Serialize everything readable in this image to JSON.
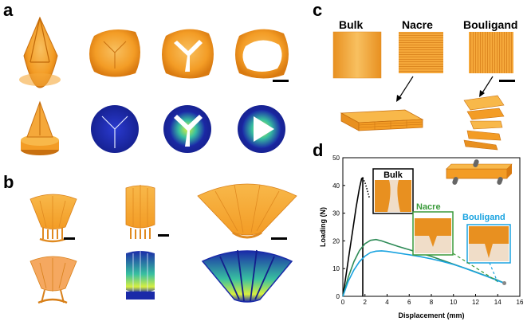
{
  "panels": {
    "a": "a",
    "b": "b",
    "c": "c",
    "d": "d"
  },
  "panel_c": {
    "labels": [
      "Bulk",
      "Nacre",
      "Bouligand"
    ]
  },
  "colors": {
    "orange_light": "#f8b84a",
    "orange_main": "#f39c25",
    "orange_dark": "#d97a10",
    "fem_blue": "#1a2aa8",
    "bulk_line": "#000000",
    "nacre_line": "#2e8b57",
    "bouligand_line": "#1aa3e0",
    "bulk_frame": "#000000",
    "nacre_frame": "#3a9a3a",
    "bouligand_frame": "#1aa3e0"
  },
  "chart_data": {
    "type": "line",
    "xlabel": "Displacement (mm)",
    "ylabel": "Loading (N)",
    "xlim": [
      0,
      16
    ],
    "ylim": [
      0,
      50
    ],
    "xticks": [
      "0",
      "2",
      "4",
      "6",
      "8",
      "10",
      "12",
      "14",
      "16"
    ],
    "yticks": [
      "0",
      "10",
      "20",
      "30",
      "40",
      "50"
    ],
    "grid": false,
    "series": [
      {
        "name": "Bulk",
        "color": "#000000",
        "x": [
          0,
          0.3,
          0.6,
          0.9,
          1.2,
          1.5,
          1.7,
          1.8,
          1.8
        ],
        "y": [
          0,
          8,
          16,
          24,
          32,
          39,
          42.5,
          42.8,
          0
        ]
      },
      {
        "name": "Bulk-dotted",
        "color": "#000000",
        "x": [
          1.8,
          2.0,
          2.2,
          2.4
        ],
        "y": [
          42.8,
          41.0,
          38.5,
          35.5
        ]
      },
      {
        "name": "Nacre",
        "color": "#2e8b57",
        "x": [
          0,
          0.5,
          1.0,
          1.5,
          2.0,
          2.5,
          3.0,
          3.5,
          4.0,
          5.0,
          6.0,
          7.0,
          8.0,
          9.0,
          10.0,
          11.0,
          12.0,
          13.0,
          14.0,
          14.6
        ],
        "y": [
          0,
          7,
          12.5,
          16.5,
          19.0,
          20.2,
          20.5,
          20.0,
          19.3,
          18.0,
          16.8,
          15.6,
          14.4,
          13.0,
          11.6,
          10.2,
          8.8,
          7.3,
          5.8,
          4.8
        ]
      },
      {
        "name": "Bouligand",
        "color": "#1aa3e0",
        "x": [
          0,
          0.5,
          1.0,
          1.5,
          2.0,
          2.5,
          3.0,
          3.5,
          4.0,
          5.0,
          6.0,
          7.0,
          8.0,
          9.0,
          10.0,
          11.0,
          12.0,
          13.0,
          14.0,
          14.6
        ],
        "y": [
          0,
          5.5,
          9.5,
          12.5,
          14.5,
          15.8,
          16.3,
          16.4,
          16.2,
          15.6,
          15.0,
          14.3,
          13.5,
          12.6,
          11.5,
          10.2,
          8.7,
          7.2,
          5.7,
          4.7
        ]
      }
    ],
    "insets": [
      {
        "name": "Bulk",
        "label": "Bulk",
        "frame_color": "#000000"
      },
      {
        "name": "Nacre",
        "label": "Nacre",
        "frame_color": "#3a9a3a"
      },
      {
        "name": "Bouligand",
        "label": "Bouligand",
        "frame_color": "#1aa3e0"
      }
    ]
  }
}
